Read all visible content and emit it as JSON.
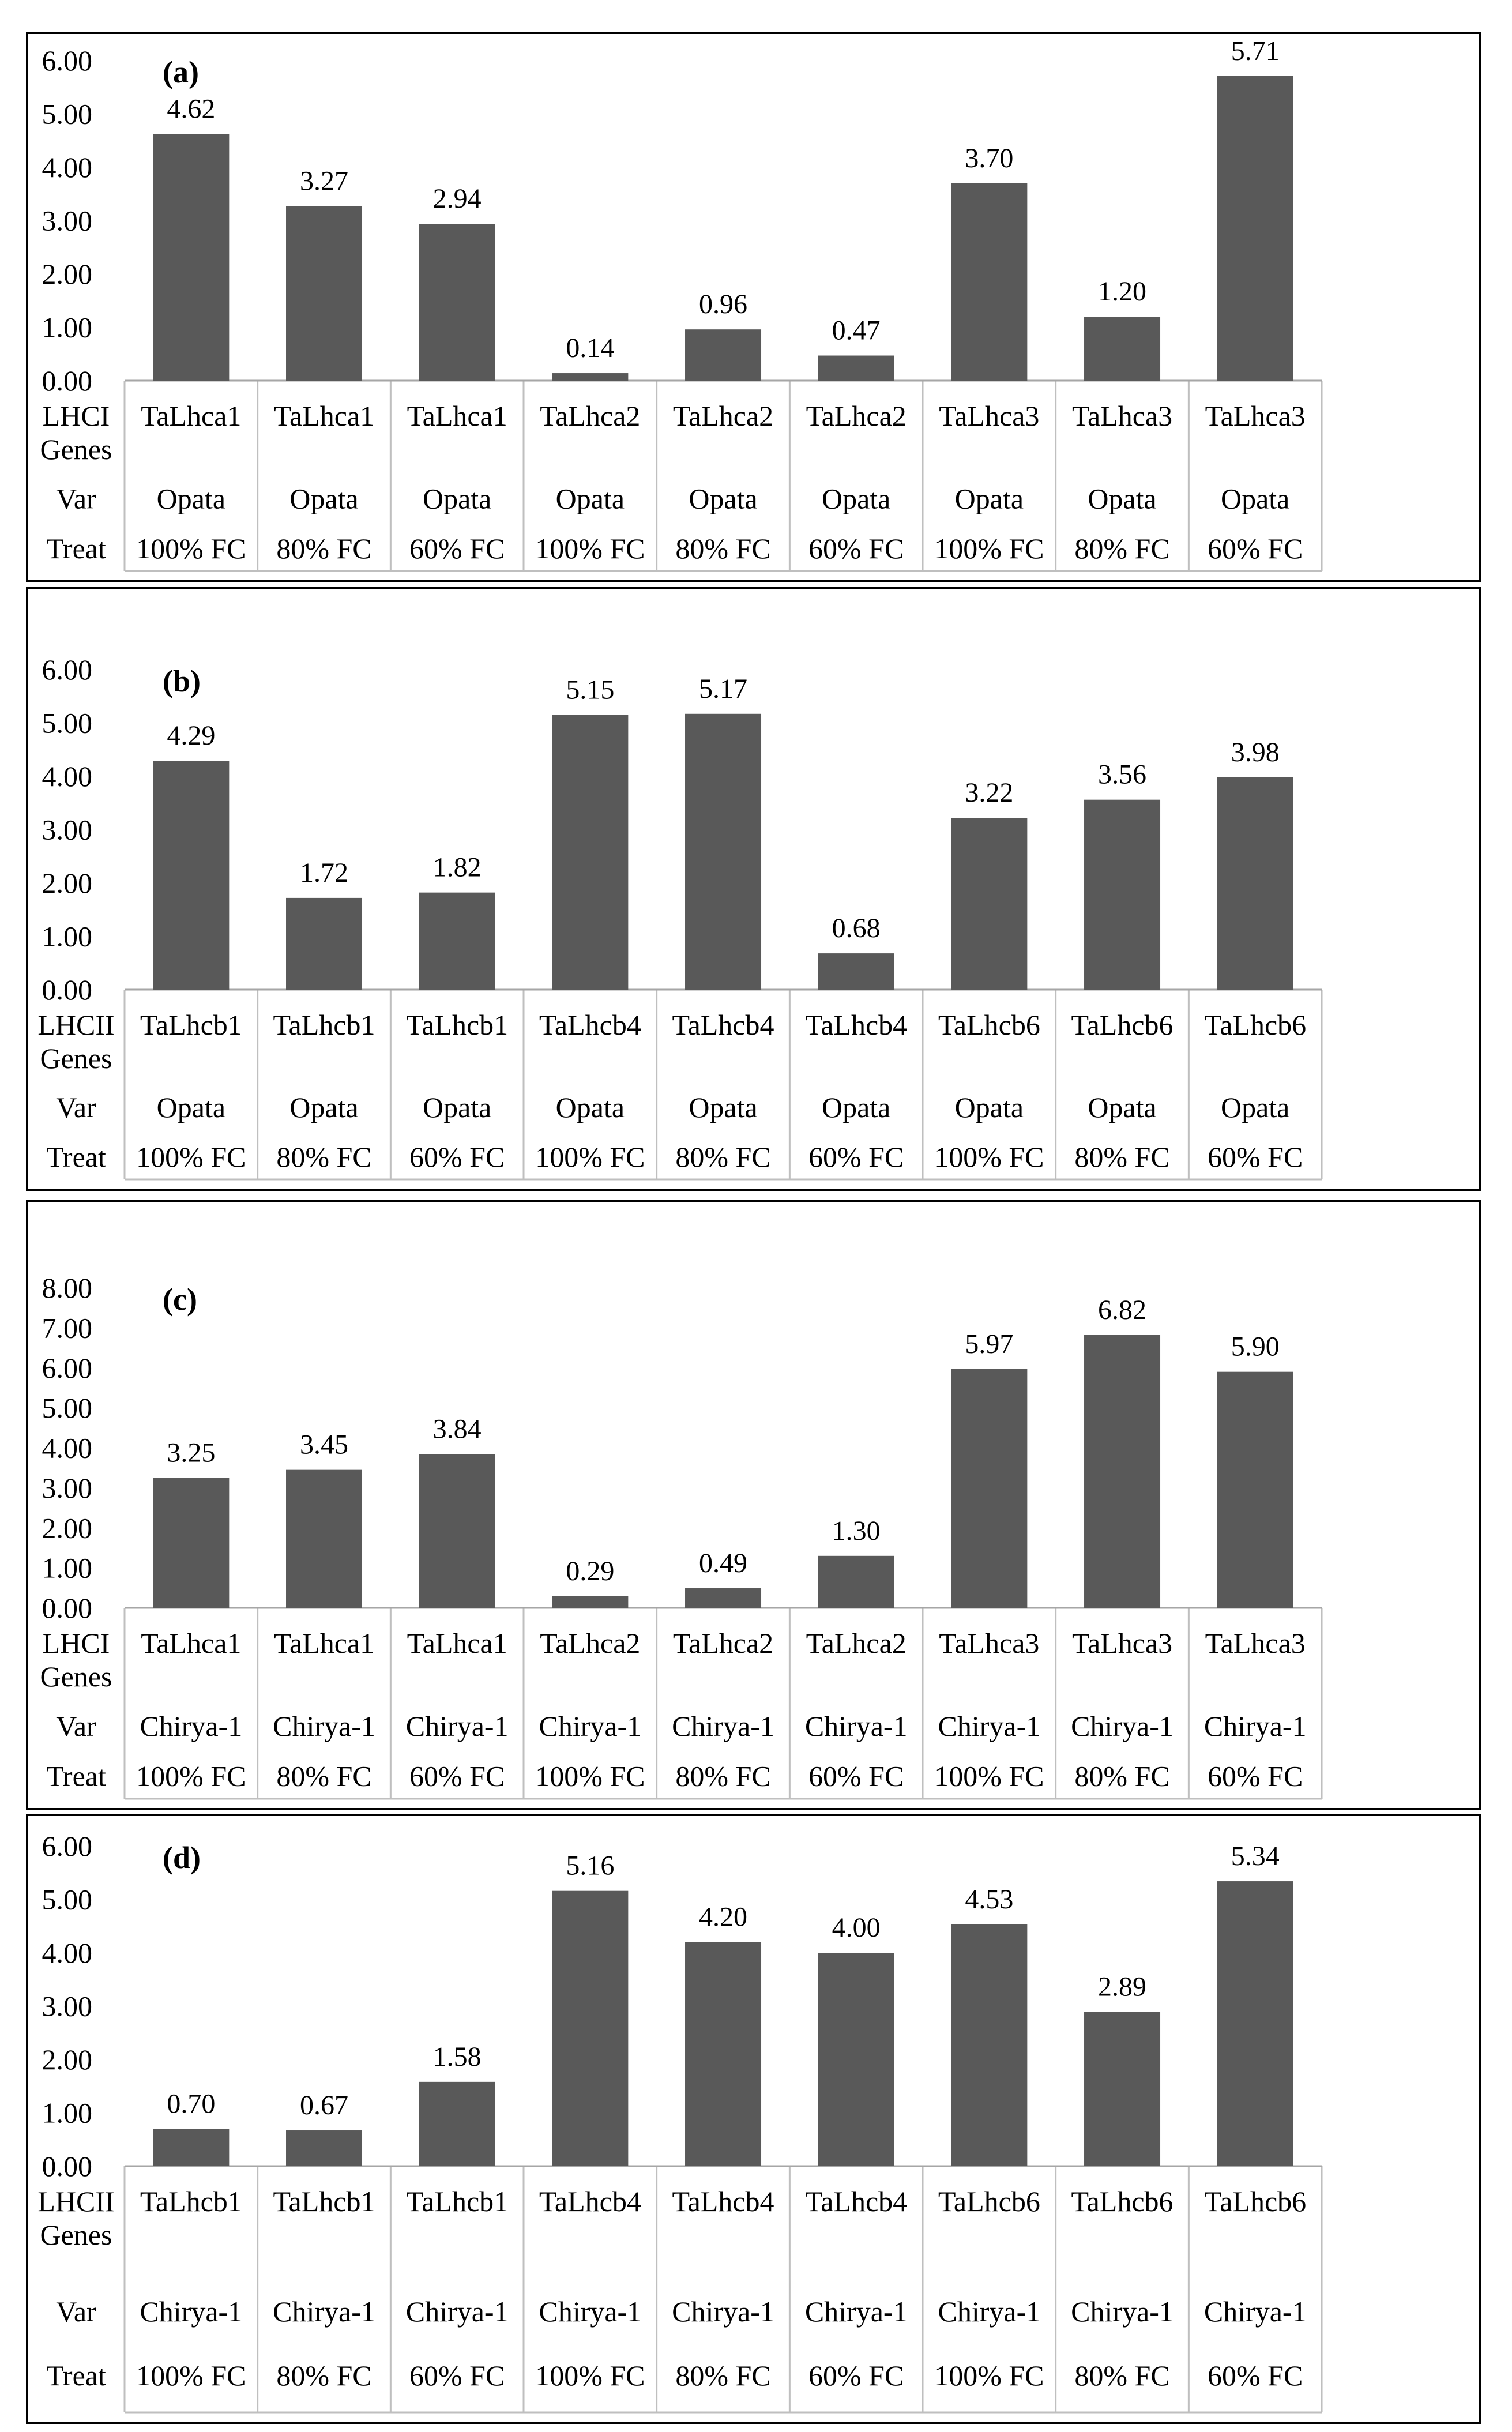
{
  "colors": {
    "bar": "#595959",
    "panel_border": "#000000",
    "axis_line": "#a6a6a6",
    "table_line": "#bfbfbf",
    "background": "#ffffff"
  },
  "chart_data": [
    {
      "type": "bar",
      "panel_label": "(a)",
      "row_headers": [
        "LHCI Genes",
        "Var",
        "Treat"
      ],
      "categories": [
        {
          "gene": "TaLhca1",
          "var": "Opata",
          "treat": "100% FC"
        },
        {
          "gene": "TaLhca1",
          "var": "Opata",
          "treat": "80% FC"
        },
        {
          "gene": "TaLhca1",
          "var": "Opata",
          "treat": "60% FC"
        },
        {
          "gene": "TaLhca2",
          "var": "Opata",
          "treat": "100% FC"
        },
        {
          "gene": "TaLhca2",
          "var": "Opata",
          "treat": "80% FC"
        },
        {
          "gene": "TaLhca2",
          "var": "Opata",
          "treat": "60% FC"
        },
        {
          "gene": "TaLhca3",
          "var": "Opata",
          "treat": "100% FC"
        },
        {
          "gene": "TaLhca3",
          "var": "Opata",
          "treat": "80% FC"
        },
        {
          "gene": "TaLhca3",
          "var": "Opata",
          "treat": "60% FC"
        }
      ],
      "values": [
        4.62,
        3.27,
        2.94,
        0.14,
        0.96,
        0.47,
        3.7,
        1.2,
        5.71
      ],
      "value_labels": [
        "4.62",
        "3.27",
        "2.94",
        "0.14",
        "0.96",
        "0.47",
        "3.70",
        "1.20",
        "5.71"
      ],
      "ylim": [
        0,
        6
      ],
      "yticks": [
        "0.00",
        "1.00",
        "2.00",
        "3.00",
        "4.00",
        "5.00",
        "6.00"
      ]
    },
    {
      "type": "bar",
      "panel_label": "(b)",
      "row_headers": [
        "LHCII Genes",
        "Var",
        "Treat"
      ],
      "categories": [
        {
          "gene": "TaLhcb1",
          "var": "Opata",
          "treat": "100% FC"
        },
        {
          "gene": "TaLhcb1",
          "var": "Opata",
          "treat": "80% FC"
        },
        {
          "gene": "TaLhcb1",
          "var": "Opata",
          "treat": "60% FC"
        },
        {
          "gene": "TaLhcb4",
          "var": "Opata",
          "treat": "100% FC"
        },
        {
          "gene": "TaLhcb4",
          "var": "Opata",
          "treat": "80% FC"
        },
        {
          "gene": "TaLhcb4",
          "var": "Opata",
          "treat": "60% FC"
        },
        {
          "gene": "TaLhcb6",
          "var": "Opata",
          "treat": "100% FC"
        },
        {
          "gene": "TaLhcb6",
          "var": "Opata",
          "treat": "80% FC"
        },
        {
          "gene": "TaLhcb6",
          "var": "Opata",
          "treat": "60% FC"
        }
      ],
      "values": [
        4.29,
        1.72,
        1.82,
        5.15,
        5.17,
        0.68,
        3.22,
        3.56,
        3.98
      ],
      "value_labels": [
        "4.29",
        "1.72",
        "1.82",
        "5.15",
        "5.17",
        "0.68",
        "3.22",
        "3.56",
        "3.98"
      ],
      "ylim": [
        0,
        6
      ],
      "yticks": [
        "0.00",
        "1.00",
        "2.00",
        "3.00",
        "4.00",
        "5.00",
        "6.00"
      ]
    },
    {
      "type": "bar",
      "panel_label": "(c)",
      "row_headers": [
        "LHCI Genes",
        "Var",
        "Treat"
      ],
      "categories": [
        {
          "gene": "TaLhca1",
          "var": "Chirya-1",
          "treat": "100% FC"
        },
        {
          "gene": "TaLhca1",
          "var": "Chirya-1",
          "treat": "80% FC"
        },
        {
          "gene": "TaLhca1",
          "var": "Chirya-1",
          "treat": "60% FC"
        },
        {
          "gene": "TaLhca2",
          "var": "Chirya-1",
          "treat": "100% FC"
        },
        {
          "gene": "TaLhca2",
          "var": "Chirya-1",
          "treat": "80% FC"
        },
        {
          "gene": "TaLhca2",
          "var": "Chirya-1",
          "treat": "60% FC"
        },
        {
          "gene": "TaLhca3",
          "var": "Chirya-1",
          "treat": "100% FC"
        },
        {
          "gene": "TaLhca3",
          "var": "Chirya-1",
          "treat": "80% FC"
        },
        {
          "gene": "TaLhca3",
          "var": "Chirya-1",
          "treat": "60% FC"
        }
      ],
      "values": [
        3.25,
        3.45,
        3.84,
        0.29,
        0.49,
        1.3,
        5.97,
        6.82,
        5.9
      ],
      "value_labels": [
        "3.25",
        "3.45",
        "3.84",
        "0.29",
        "0.49",
        "1.30",
        "5.97",
        "6.82",
        "5.90"
      ],
      "ylim": [
        0,
        8
      ],
      "yticks": [
        "0.00",
        "1.00",
        "2.00",
        "3.00",
        "4.00",
        "5.00",
        "6.00",
        "7.00",
        "8.00"
      ]
    },
    {
      "type": "bar",
      "panel_label": "(d)",
      "row_headers": [
        "LHCII Genes",
        "Var",
        "Treat"
      ],
      "categories": [
        {
          "gene": "TaLhcb1",
          "var": "Chirya-1",
          "treat": "100% FC"
        },
        {
          "gene": "TaLhcb1",
          "var": "Chirya-1",
          "treat": "80% FC"
        },
        {
          "gene": "TaLhcb1",
          "var": "Chirya-1",
          "treat": "60% FC"
        },
        {
          "gene": "TaLhcb4",
          "var": "Chirya-1",
          "treat": "100% FC"
        },
        {
          "gene": "TaLhcb4",
          "var": "Chirya-1",
          "treat": "80% FC"
        },
        {
          "gene": "TaLhcb4",
          "var": "Chirya-1",
          "treat": "60% FC"
        },
        {
          "gene": "TaLhcb6",
          "var": "Chirya-1",
          "treat": "100% FC"
        },
        {
          "gene": "TaLhcb6",
          "var": "Chirya-1",
          "treat": "80% FC"
        },
        {
          "gene": "TaLhcb6",
          "var": "Chirya-1",
          "treat": "60% FC"
        }
      ],
      "values": [
        0.7,
        0.67,
        1.58,
        5.16,
        4.2,
        4.0,
        4.53,
        2.89,
        5.34
      ],
      "value_labels": [
        "0.70",
        "0.67",
        "1.58",
        "5.16",
        "4.20",
        "4.00",
        "4.53",
        "2.89",
        "5.34"
      ],
      "ylim": [
        0,
        6
      ],
      "yticks": [
        "0.00",
        "1.00",
        "2.00",
        "3.00",
        "4.00",
        "5.00",
        "6.00"
      ]
    }
  ]
}
